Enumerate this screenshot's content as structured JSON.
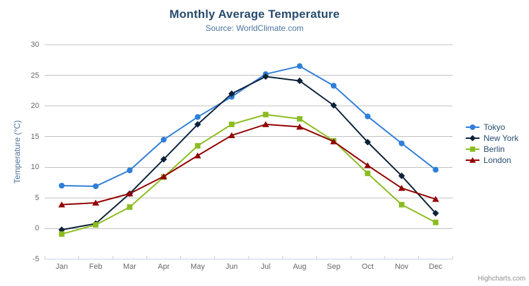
{
  "chart_data": {
    "type": "line",
    "title": "Monthly Average Temperature",
    "subtitle": "Source: WorldClimate.com",
    "xlabel": "",
    "ylabel": "Temperature (°C)",
    "categories": [
      "Jan",
      "Feb",
      "Mar",
      "Apr",
      "May",
      "Jun",
      "Jul",
      "Aug",
      "Sep",
      "Oct",
      "Nov",
      "Dec"
    ],
    "ylim": [
      -5,
      30
    ],
    "yticks": [
      -5,
      0,
      5,
      10,
      15,
      20,
      25,
      30
    ],
    "grid": true,
    "legend_position": "right",
    "series": [
      {
        "name": "Tokyo",
        "color": "#2f7ed8",
        "marker": "circle",
        "values": [
          7.0,
          6.9,
          9.5,
          14.5,
          18.2,
          21.5,
          25.2,
          26.5,
          23.3,
          18.3,
          13.9,
          9.6
        ]
      },
      {
        "name": "New York",
        "color": "#0d233a",
        "marker": "diamond",
        "values": [
          -0.2,
          0.8,
          5.7,
          11.3,
          17.0,
          22.0,
          24.8,
          24.1,
          20.1,
          14.1,
          8.6,
          2.5
        ]
      },
      {
        "name": "Berlin",
        "color": "#8bbc21",
        "marker": "square",
        "values": [
          -0.9,
          0.6,
          3.5,
          8.4,
          13.5,
          17.0,
          18.6,
          17.9,
          14.3,
          9.0,
          3.9,
          1.0
        ]
      },
      {
        "name": "London",
        "color": "#910000",
        "marker": "triangle",
        "values": [
          3.9,
          4.2,
          5.7,
          8.5,
          11.9,
          15.2,
          17.0,
          16.6,
          14.2,
          10.3,
          6.6,
          4.8
        ]
      }
    ],
    "style": {
      "title_color": "#274b6d",
      "subtitle_color": "#4d759e",
      "axis_title_color": "#4d759e",
      "axis_label_color": "#666666",
      "grid_color": "#c0c0c0",
      "axis_line_color": "#c0d0e0",
      "legend_text_color": "#274b6d"
    }
  },
  "export_button": {
    "icon": "hamburger-icon"
  },
  "credits": {
    "label": "Highcharts.com"
  }
}
